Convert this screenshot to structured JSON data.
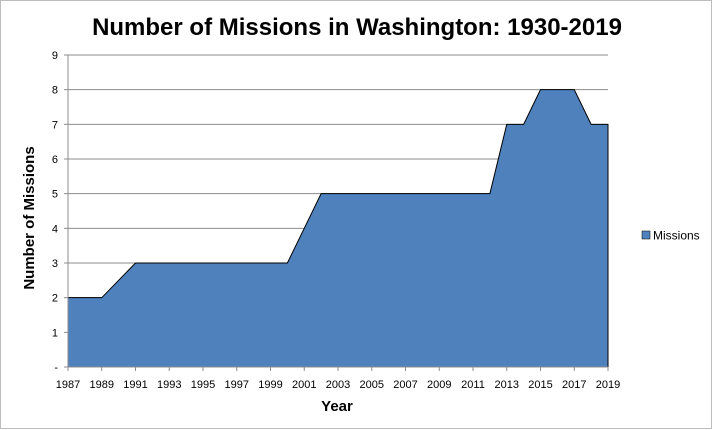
{
  "chart_data": {
    "type": "area",
    "title": "Number of Missions in Washington: 1930-2019",
    "xlabel": "Year",
    "ylabel": "Number of Missions",
    "x": [
      1987,
      1988,
      1989,
      1990,
      1991,
      1992,
      1993,
      1994,
      1995,
      1996,
      1997,
      1998,
      1999,
      2000,
      2001,
      2002,
      2003,
      2004,
      2005,
      2006,
      2007,
      2008,
      2009,
      2010,
      2011,
      2012,
      2013,
      2014,
      2015,
      2016,
      2017,
      2018,
      2019
    ],
    "x_tick_labels": [
      "1987",
      "1989",
      "1991",
      "1993",
      "1995",
      "1997",
      "1999",
      "2001",
      "2003",
      "2005",
      "2007",
      "2009",
      "2011",
      "2013",
      "2015",
      "2017",
      "2019"
    ],
    "y_tick_labels": [
      "-",
      "1",
      "2",
      "3",
      "4",
      "5",
      "6",
      "7",
      "8",
      "9"
    ],
    "ylim": [
      0,
      9
    ],
    "grid": "horizontal",
    "legend_position": "right",
    "series": [
      {
        "name": "Missions",
        "color": "#4f81bd",
        "values": [
          2,
          2,
          2,
          2.5,
          3,
          3,
          3,
          3,
          3,
          3,
          3,
          3,
          3,
          3,
          4,
          5,
          5,
          5,
          5,
          5,
          5,
          5,
          5,
          5,
          5,
          5,
          7,
          7,
          8,
          8,
          8,
          7,
          7
        ]
      }
    ]
  }
}
